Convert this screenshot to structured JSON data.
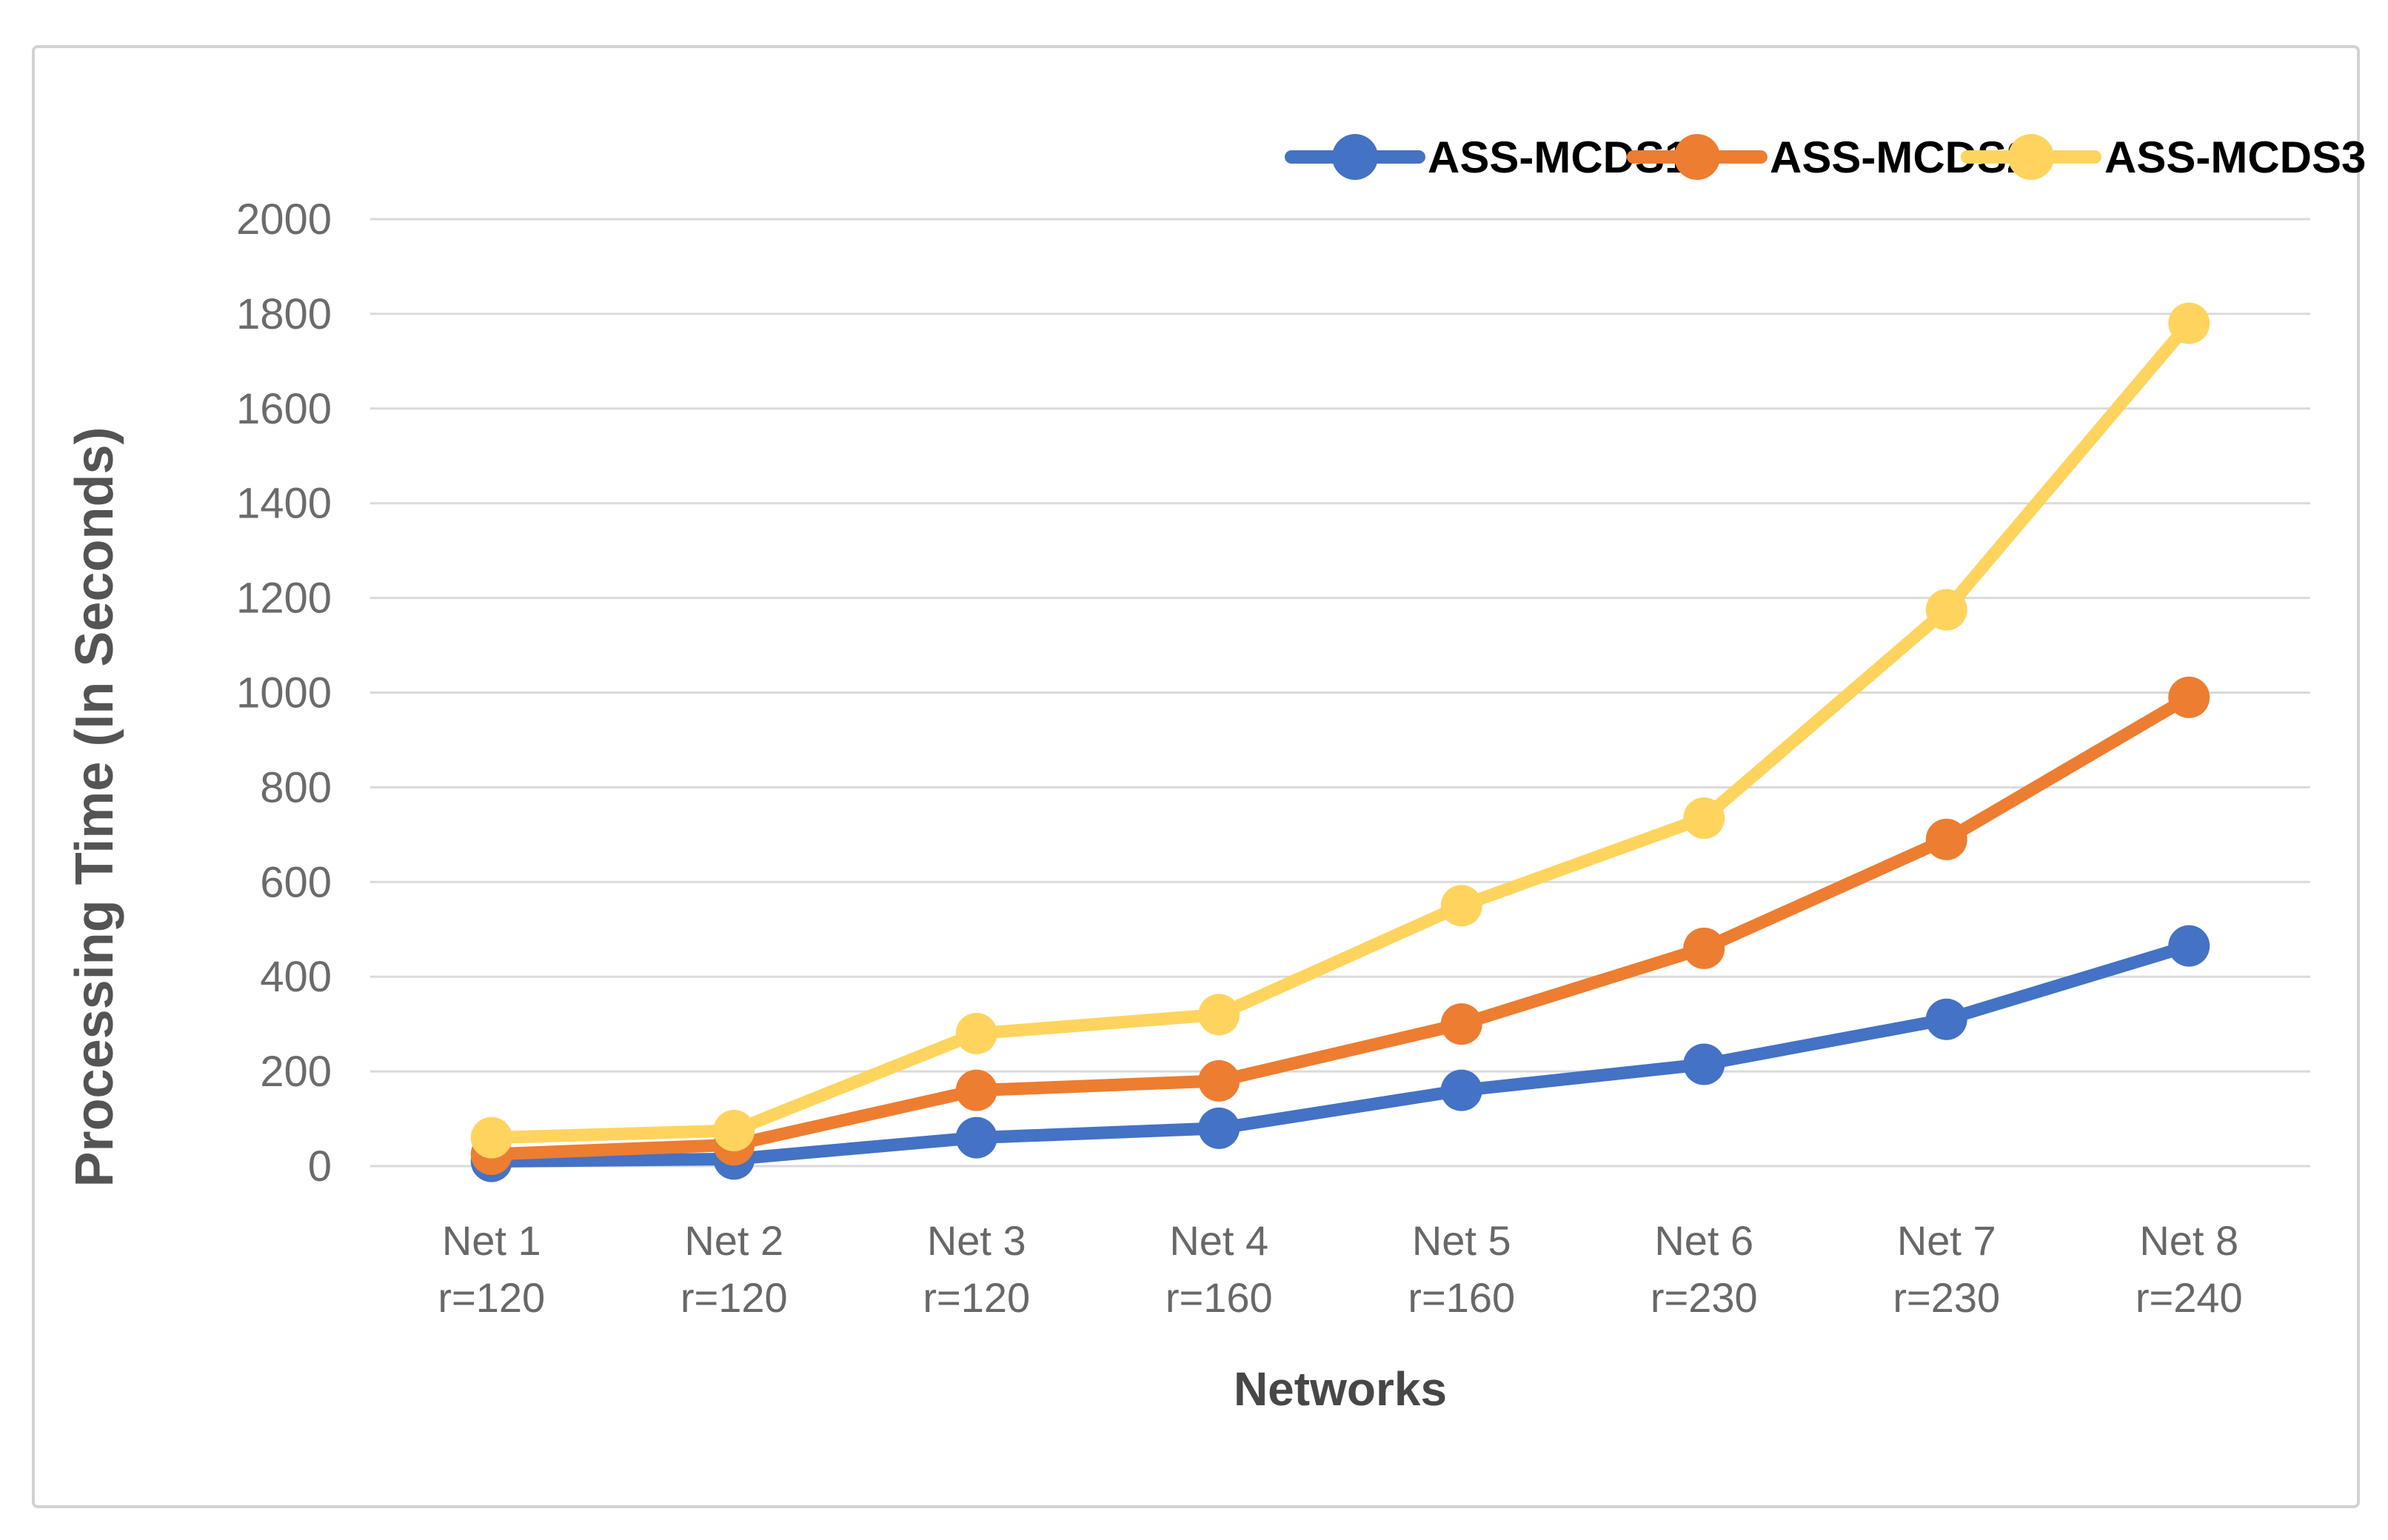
{
  "chart_data": {
    "type": "line",
    "title": "",
    "xlabel": "Networks",
    "ylabel": "Processing Time (In Seconds)",
    "ylim": [
      0,
      2000
    ],
    "ytick_interval": 200,
    "yticks": [
      0,
      200,
      400,
      600,
      800,
      1000,
      1200,
      1400,
      1600,
      1800,
      2000
    ],
    "grid": "horizontal",
    "legend_position": "top-right",
    "marker": "circle",
    "categories": [
      {
        "name": "Net 1",
        "sub": "r=120"
      },
      {
        "name": "Net 2",
        "sub": "r=120"
      },
      {
        "name": "Net 3",
        "sub": "r=120"
      },
      {
        "name": "Net 4",
        "sub": "r=160"
      },
      {
        "name": "Net 5",
        "sub": "r=160"
      },
      {
        "name": "Net 6",
        "sub": "r=230"
      },
      {
        "name": "Net 7",
        "sub": "r=230"
      },
      {
        "name": "Net 8",
        "sub": "r=240"
      }
    ],
    "series": [
      {
        "name": "ASS-MCDS1",
        "color": "#4472C4",
        "values": [
          10,
          15,
          60,
          80,
          160,
          215,
          310,
          465
        ]
      },
      {
        "name": "ASS-MCDS2",
        "color": "#ED7D31",
        "values": [
          25,
          45,
          160,
          180,
          300,
          460,
          690,
          990
        ]
      },
      {
        "name": "ASS-MCDS3",
        "color": "#FFD45E",
        "values": [
          60,
          75,
          280,
          320,
          550,
          735,
          1175,
          1780
        ]
      }
    ]
  },
  "colors": {
    "background": "#ffffff",
    "figure_border": "#d2d2d2",
    "gridline": "#dadada",
    "tick_text": "#6b6b6b",
    "category_text": "#686868",
    "axis_title_text": "#474747",
    "legend_text": "#000000"
  }
}
